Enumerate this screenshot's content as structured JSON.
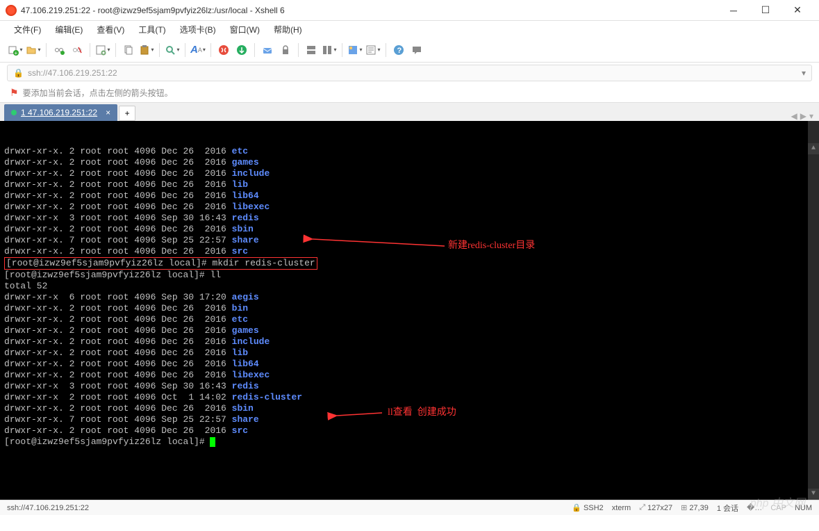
{
  "window": {
    "title": "47.106.219.251:22 - root@izwz9ef5sjam9pvfyiz26lz:/usr/local - Xshell 6"
  },
  "menu": {
    "file": "文件(F)",
    "edit": "编辑(E)",
    "view": "查看(V)",
    "tools": "工具(T)",
    "tabs": "选项卡(B)",
    "window": "窗口(W)",
    "help": "帮助(H)"
  },
  "address": {
    "url": "ssh://47.106.219.251:22"
  },
  "hint": {
    "text": "要添加当前会话，点击左侧的箭头按钮。"
  },
  "tab": {
    "label": "1 47.106.219.251:22"
  },
  "terminal": {
    "listing1": [
      {
        "perm": "drwxr-xr-x.",
        "n": "2",
        "own": "root",
        "grp": "root",
        "size": "4096",
        "date": "Dec 26  2016",
        "name": "etc"
      },
      {
        "perm": "drwxr-xr-x.",
        "n": "2",
        "own": "root",
        "grp": "root",
        "size": "4096",
        "date": "Dec 26  2016",
        "name": "games"
      },
      {
        "perm": "drwxr-xr-x.",
        "n": "2",
        "own": "root",
        "grp": "root",
        "size": "4096",
        "date": "Dec 26  2016",
        "name": "include"
      },
      {
        "perm": "drwxr-xr-x.",
        "n": "2",
        "own": "root",
        "grp": "root",
        "size": "4096",
        "date": "Dec 26  2016",
        "name": "lib"
      },
      {
        "perm": "drwxr-xr-x.",
        "n": "2",
        "own": "root",
        "grp": "root",
        "size": "4096",
        "date": "Dec 26  2016",
        "name": "lib64"
      },
      {
        "perm": "drwxr-xr-x.",
        "n": "2",
        "own": "root",
        "grp": "root",
        "size": "4096",
        "date": "Dec 26  2016",
        "name": "libexec"
      },
      {
        "perm": "drwxr-xr-x ",
        "n": "3",
        "own": "root",
        "grp": "root",
        "size": "4096",
        "date": "Sep 30 16:43",
        "name": "redis"
      },
      {
        "perm": "drwxr-xr-x.",
        "n": "2",
        "own": "root",
        "grp": "root",
        "size": "4096",
        "date": "Dec 26  2016",
        "name": "sbin"
      },
      {
        "perm": "drwxr-xr-x.",
        "n": "7",
        "own": "root",
        "grp": "root",
        "size": "4096",
        "date": "Sep 25 22:57",
        "name": "share"
      },
      {
        "perm": "drwxr-xr-x.",
        "n": "2",
        "own": "root",
        "grp": "root",
        "size": "4096",
        "date": "Dec 26  2016",
        "name": "src"
      }
    ],
    "prompt": "[root@izwz9ef5sjam9pvfyiz26lz local]#",
    "cmd_mkdir": " mkdir redis-cluster",
    "cmd_ll": " ll",
    "total": "total 52",
    "listing2": [
      {
        "perm": "drwxr-xr-x ",
        "n": "6",
        "own": "root",
        "grp": "root",
        "size": "4096",
        "date": "Sep 30 17:20",
        "name": "aegis"
      },
      {
        "perm": "drwxr-xr-x.",
        "n": "2",
        "own": "root",
        "grp": "root",
        "size": "4096",
        "date": "Dec 26  2016",
        "name": "bin"
      },
      {
        "perm": "drwxr-xr-x.",
        "n": "2",
        "own": "root",
        "grp": "root",
        "size": "4096",
        "date": "Dec 26  2016",
        "name": "etc"
      },
      {
        "perm": "drwxr-xr-x.",
        "n": "2",
        "own": "root",
        "grp": "root",
        "size": "4096",
        "date": "Dec 26  2016",
        "name": "games"
      },
      {
        "perm": "drwxr-xr-x.",
        "n": "2",
        "own": "root",
        "grp": "root",
        "size": "4096",
        "date": "Dec 26  2016",
        "name": "include"
      },
      {
        "perm": "drwxr-xr-x.",
        "n": "2",
        "own": "root",
        "grp": "root",
        "size": "4096",
        "date": "Dec 26  2016",
        "name": "lib"
      },
      {
        "perm": "drwxr-xr-x.",
        "n": "2",
        "own": "root",
        "grp": "root",
        "size": "4096",
        "date": "Dec 26  2016",
        "name": "lib64"
      },
      {
        "perm": "drwxr-xr-x.",
        "n": "2",
        "own": "root",
        "grp": "root",
        "size": "4096",
        "date": "Dec 26  2016",
        "name": "libexec"
      },
      {
        "perm": "drwxr-xr-x ",
        "n": "3",
        "own": "root",
        "grp": "root",
        "size": "4096",
        "date": "Sep 30 16:43",
        "name": "redis"
      },
      {
        "perm": "drwxr-xr-x ",
        "n": "2",
        "own": "root",
        "grp": "root",
        "size": "4096",
        "date": "Oct  1 14:02",
        "name": "redis-cluster"
      },
      {
        "perm": "drwxr-xr-x.",
        "n": "2",
        "own": "root",
        "grp": "root",
        "size": "4096",
        "date": "Dec 26  2016",
        "name": "sbin"
      },
      {
        "perm": "drwxr-xr-x.",
        "n": "7",
        "own": "root",
        "grp": "root",
        "size": "4096",
        "date": "Sep 25 22:57",
        "name": "share"
      },
      {
        "perm": "drwxr-xr-x.",
        "n": "2",
        "own": "root",
        "grp": "root",
        "size": "4096",
        "date": "Dec 26  2016",
        "name": "src"
      }
    ],
    "annotation1": "新建redis-cluster目录",
    "annotation2": "ll查看  创建成功"
  },
  "status": {
    "left": "ssh://47.106.219.251:22",
    "ssh": "SSH2",
    "term": "xterm",
    "size": "127x27",
    "pos": "27,39",
    "session": "1 会话",
    "cap": "CAP",
    "num": "NUM"
  },
  "colors": {
    "terminal_bg": "#000000",
    "terminal_fg": "#c0c0c0",
    "dir_color": "#5e8cff",
    "annotation_color": "#ff3333",
    "tab_active": "#5b7ca8",
    "cursor": "#00ff00"
  }
}
